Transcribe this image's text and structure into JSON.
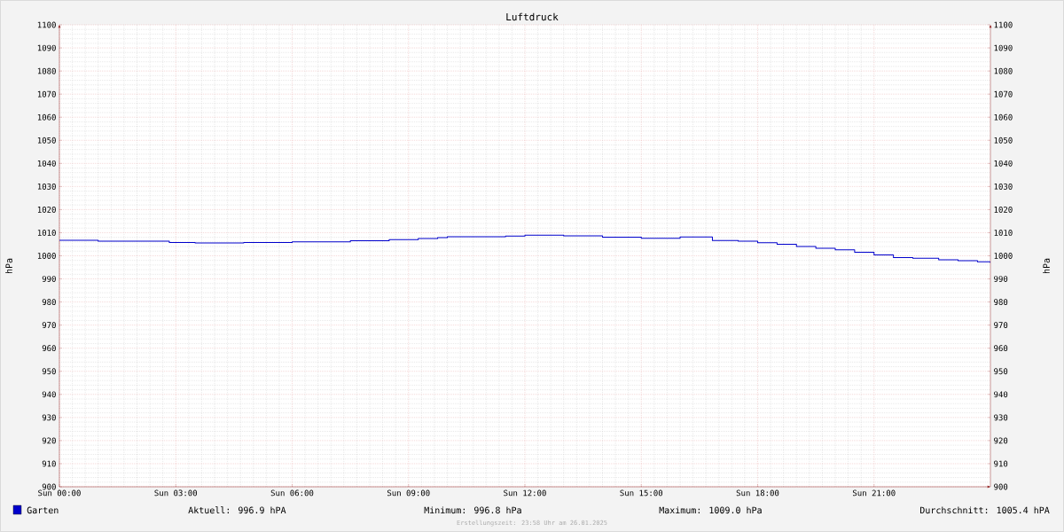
{
  "chart_data": {
    "type": "step",
    "title": "Luftdruck",
    "ylabel": "hPa",
    "y2label": "hPa",
    "xlim": [
      "2025-01-26T00:00",
      "2025-01-27T00:00"
    ],
    "xticks": [
      {
        "value": "2025-01-26T00:00",
        "label": "Sun 00:00"
      },
      {
        "value": "2025-01-26T03:00",
        "label": "Sun 03:00"
      },
      {
        "value": "2025-01-26T06:00",
        "label": "Sun 06:00"
      },
      {
        "value": "2025-01-26T09:00",
        "label": "Sun 09:00"
      },
      {
        "value": "2025-01-26T12:00",
        "label": "Sun 12:00"
      },
      {
        "value": "2025-01-26T15:00",
        "label": "Sun 15:00"
      },
      {
        "value": "2025-01-26T18:00",
        "label": "Sun 18:00"
      },
      {
        "value": "2025-01-26T21:00",
        "label": "Sun 21:00"
      }
    ],
    "ylim": [
      900,
      1100
    ],
    "yticks": [
      900,
      910,
      920,
      930,
      940,
      950,
      960,
      970,
      980,
      990,
      1000,
      1010,
      1020,
      1030,
      1040,
      1050,
      1060,
      1070,
      1080,
      1090,
      1100
    ],
    "y2lim": [
      900,
      1100
    ],
    "y2ticks": [
      900,
      910,
      920,
      930,
      940,
      950,
      960,
      970,
      980,
      990,
      1000,
      1010,
      1020,
      1030,
      1040,
      1050,
      1060,
      1070,
      1080,
      1090,
      1100
    ],
    "grid": true,
    "legend": "bottom",
    "series": [
      {
        "name": "Garten",
        "color": "#0000cc",
        "x": [
          "2025-01-26T00:00",
          "2025-01-26T01:00",
          "2025-01-26T02:50",
          "2025-01-26T03:30",
          "2025-01-26T04:45",
          "2025-01-26T06:00",
          "2025-01-26T07:30",
          "2025-01-26T08:30",
          "2025-01-26T09:15",
          "2025-01-26T09:45",
          "2025-01-26T10:00",
          "2025-01-26T11:30",
          "2025-01-26T12:00",
          "2025-01-26T13:00",
          "2025-01-26T14:00",
          "2025-01-26T15:00",
          "2025-01-26T16:00",
          "2025-01-26T16:50",
          "2025-01-26T17:30",
          "2025-01-26T18:00",
          "2025-01-26T18:30",
          "2025-01-26T19:00",
          "2025-01-26T19:30",
          "2025-01-26T20:00",
          "2025-01-26T20:30",
          "2025-01-26T21:00",
          "2025-01-26T21:30",
          "2025-01-26T22:00",
          "2025-01-26T22:40",
          "2025-01-26T23:10",
          "2025-01-26T23:40",
          "2025-01-27T00:00"
        ],
        "values": [
          1006.7,
          1006.3,
          1005.8,
          1005.6,
          1005.8,
          1006.0,
          1006.5,
          1007.0,
          1007.5,
          1007.9,
          1008.3,
          1008.5,
          1008.9,
          1008.6,
          1008.1,
          1007.6,
          1008.2,
          1006.6,
          1006.3,
          1005.7,
          1005.0,
          1004.0,
          1003.3,
          1002.6,
          1001.5,
          1000.4,
          999.2,
          998.9,
          998.3,
          997.9,
          997.4,
          996.9
        ]
      }
    ],
    "annotations": [
      "Aktuell: 996.9 hPA",
      "Minimum: 996.8 hPa",
      "Maximum: 1009.0 hPa",
      "Durchschnitt: 1005.4 hPA",
      "Erstellungszeit: 23:58 Uhr am 26.01.2025"
    ]
  }
}
